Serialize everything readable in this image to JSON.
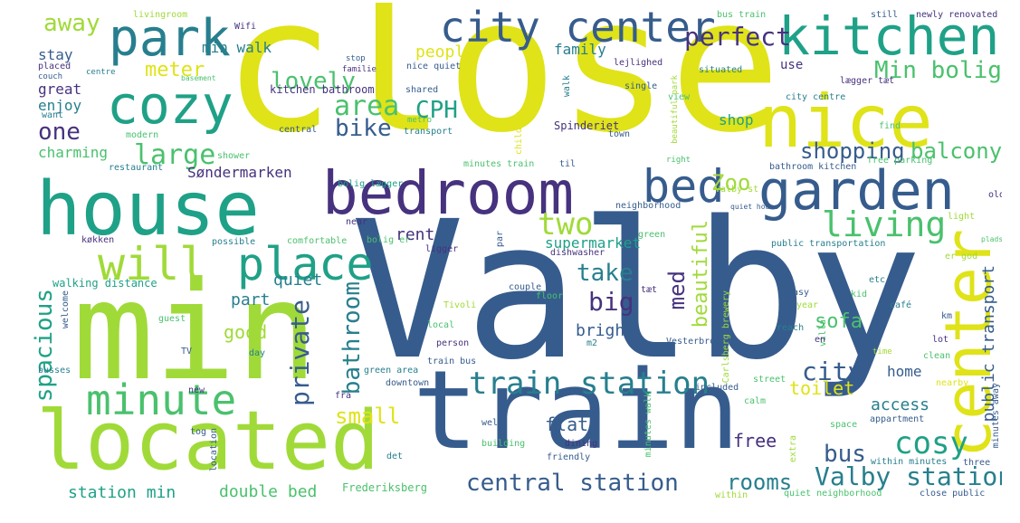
{
  "words": {
    "close": "close",
    "valby": "Valby",
    "min": "min",
    "train": "train",
    "house": "house",
    "located": "located",
    "bedroom": "bedroom",
    "garden": "garden",
    "nice": "nice",
    "center": "center",
    "kitchen": "kitchen",
    "park": "park",
    "cozy": "cozy",
    "city_center": "city center",
    "will": "will",
    "place": "place",
    "minute": "minute",
    "bed": "bed",
    "living": "living",
    "min_bolig": "Min bolig",
    "perfect": "perfect",
    "train_station": "train station",
    "central_station": "central station",
    "valby_station": "Valby station",
    "shopping": "shopping",
    "balcony": "balcony",
    "cosy": "cosy",
    "two": "two",
    "large": "large",
    "area": "area",
    "cph": "CPH",
    "lovely": "lovely",
    "away": "away",
    "meter": "meter",
    "bike": "bike",
    "one": "one",
    "charming": "charming",
    "spacious": "spacious",
    "private": "private",
    "bathroom": "bathroom",
    "city": "city",
    "rooms": "rooms",
    "beautiful": "beautiful",
    "big": "big",
    "take": "take",
    "small": "small",
    "med": "med",
    "zoo": "Zoo",
    "sofa": "sofa",
    "toilet": "toilet",
    "bus": "bus",
    "public_transport": "public transport",
    "double_bed": "double bed",
    "station_min": "station min",
    "søndermarken": "Søndermarken",
    "good": "good",
    "quiet": "quiet",
    "part": "part",
    "rent": "rent",
    "supermarket": "supermarket",
    "people": "people",
    "family": "family",
    "stay": "stay",
    "min_walk": "min walk",
    "great": "great",
    "enjoy": "enjoy",
    "kitchen_bathroom": "kitchen bathroom",
    "shop": "shop",
    "use": "use",
    "access": "access",
    "home": "home",
    "free": "free",
    "flat": "flat",
    "bright": "bright",
    "frederiksberg": "Frederiksberg",
    "walking_distance": "walking distance",
    "livingroom": "livingroom",
    "wifi": "Wifi",
    "bus_train": "bus train",
    "still": "still",
    "newly_renovated": "newly renovated",
    "placed": "placed",
    "couch": "couch",
    "centre": "centre",
    "basement": "basement",
    "nice_quiet": "nice quiet",
    "familie": "familie",
    "lejlighed": "lejlighed",
    "situated": "situated",
    "shared": "shared",
    "walk": "walk",
    "single": "single",
    "city_centre": "city centre",
    "lægger_tæt": "lægger tæt",
    "view": "view",
    "metro": "metro",
    "central": "central",
    "transport": "transport",
    "children": "children",
    "spinderiet": "Spinderiet",
    "town": "town",
    "beautiful_park": "beautiful park",
    "find": "find",
    "want": "want",
    "modern": "modern",
    "shower": "shower",
    "restaurant": "restaurant",
    "minutes_train": "minutes train",
    "til": "til",
    "right": "right",
    "bathroom_kitchen": "bathroom kitchen",
    "free_parking": "free parking",
    "old": "old",
    "bolig_lægger": "bolig lægger",
    "valby_st": "Valby st",
    "neighborhood": "neighborhood",
    "quiet_house": "quiet house",
    "til_par": "til par",
    "cafe": "cafe",
    "bolig_er": "bolig er",
    "near": "near",
    "light": "light",
    "køkken": "køkken",
    "possible": "possible",
    "comfortable": "comfortable",
    "ligger": "ligger",
    "green": "green",
    "dishwasher": "dishwasher",
    "public_transportation": "public transportation",
    "er_god": "er god",
    "welcome": "welcome",
    "couple": "couple",
    "carlsberg_brewery": "Carlsberg brewery",
    "tæt": "tæt",
    "kid": "kid",
    "café": "café",
    "tivoli": "Tivoli",
    "floor": "floor",
    "easy": "easy",
    "year": "year",
    "local": "local",
    "villa": "villa",
    "reach": "reach",
    "km": "km",
    "en": "en",
    "guest": "guest",
    "person": "person",
    "m2": "m2",
    "vesterbro": "Vesterbro",
    "tv": "TV",
    "day": "day",
    "lot": "lot",
    "time": "time",
    "clean": "clean",
    "busses": "busses",
    "green_area": "green area",
    "train_bus": "train bus",
    "downtown": "downtown",
    "fra": "fra",
    "new": "new",
    "included": "included",
    "street": "street",
    "nearby": "nearby",
    "calm": "calm",
    "etc": "etc",
    "space": "space",
    "appartment": "appartment",
    "well": "well",
    "building": "building",
    "dining": "dining",
    "friendly": "friendly",
    "tog": "tog",
    "location": "location",
    "det": "det",
    "minutes_walk": "minutes walk",
    "extra": "extra",
    "within_minutes": "within minutes",
    "three": "three",
    "minutes_away": "minutes away",
    "within": "within",
    "quiet_neighborhood": "quiet neighborhood",
    "close_public": "close public",
    "stop": "stop",
    "plads": "plads"
  },
  "colors": {
    "background": "#ffffff",
    "yellow": "#dfe318",
    "lime": "#a0da39",
    "green": "#4ac16d",
    "teal": "#1fa187",
    "cyan": "#277f8e",
    "blue": "#365c8d",
    "indigo": "#46327e",
    "purple": "#440154"
  }
}
